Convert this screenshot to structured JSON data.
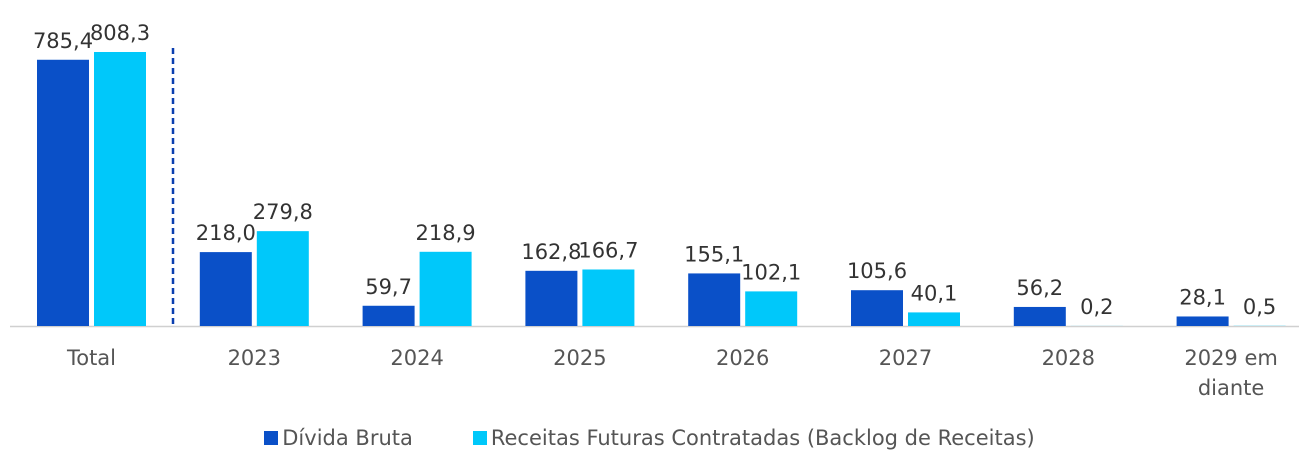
{
  "chart_data": {
    "type": "bar",
    "categories": [
      "Total",
      "2023",
      "2024",
      "2025",
      "2026",
      "2027",
      "2028",
      "2029 em diante"
    ],
    "series": [
      {
        "name": "Dívida Bruta",
        "color": "#0a50c8",
        "values": [
          785.4,
          218.0,
          59.7,
          162.8,
          155.1,
          105.6,
          56.2,
          28.1
        ],
        "value_labels": [
          "785,4",
          "218,0",
          "59,7",
          "162,8",
          "155,1",
          "105,6",
          "56,2",
          "28,1"
        ]
      },
      {
        "name": "Receitas Futuras Contratadas (Backlog de Receitas)",
        "color": "#00c8fa",
        "values": [
          808.3,
          279.8,
          218.9,
          166.7,
          102.1,
          40.1,
          0.2,
          0.5
        ],
        "value_labels": [
          "808,3",
          "279,8",
          "218,9",
          "166,7",
          "102,1",
          "40,1",
          "0,2",
          "0,5"
        ]
      }
    ]
  }
}
